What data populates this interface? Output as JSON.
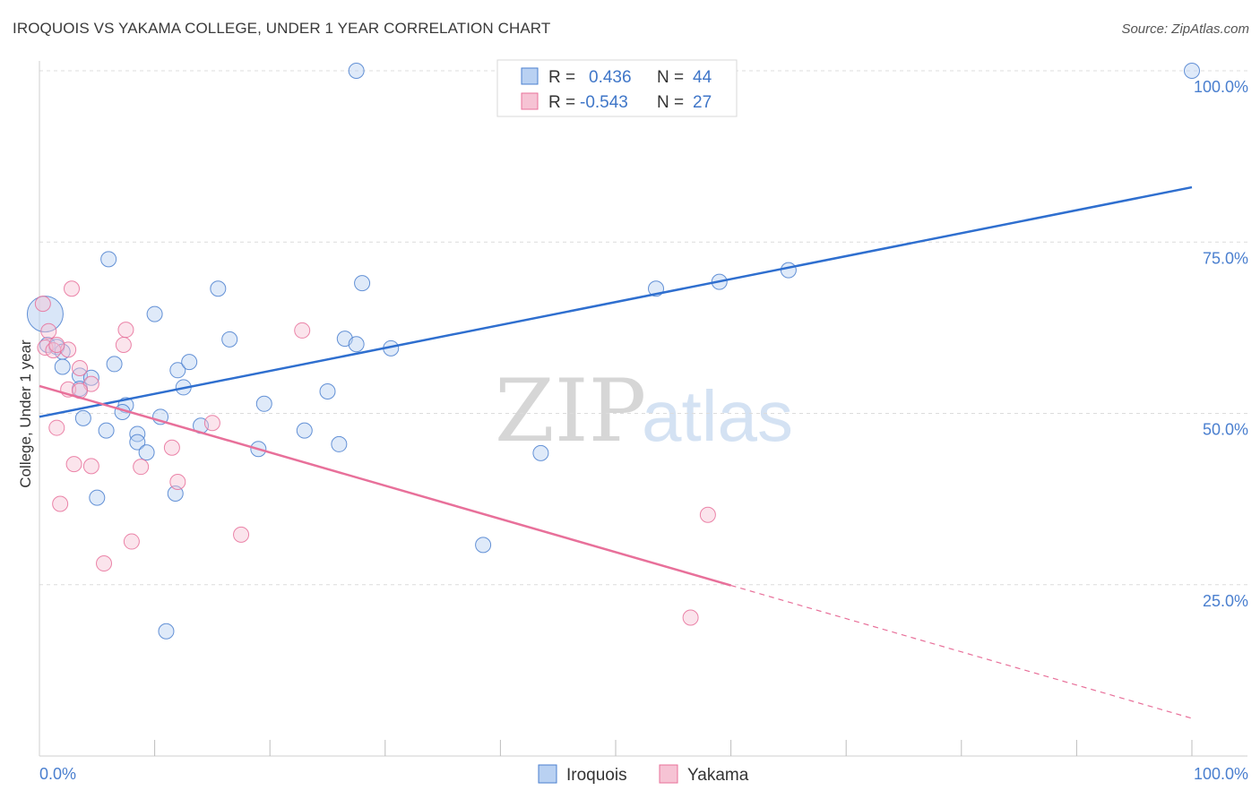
{
  "title": "IROQUOIS VS YAKAMA COLLEGE, UNDER 1 YEAR CORRELATION CHART",
  "source": "Source: ZipAtlas.com",
  "watermark": {
    "zip": "ZIP",
    "atlas": "atlas"
  },
  "colors": {
    "blue": "#4a7fcf",
    "blue_fill": "#b9d1f2",
    "pink": "#e8709a",
    "pink_fill": "#f6c3d4",
    "grid": "#dcdcdc"
  },
  "legend": {
    "rows": [
      {
        "r_label": "R =",
        "r_value": "0.436",
        "n_label": "N =",
        "n_value": "44"
      },
      {
        "r_label": "R =",
        "r_value": "-0.543",
        "n_label": "N =",
        "n_value": "27"
      }
    ]
  },
  "chart_data": {
    "type": "scatter",
    "title": "IROQUOIS VS YAKAMA COLLEGE, UNDER 1 YEAR CORRELATION CHART",
    "xlabel": "",
    "ylabel": "College, Under 1 year",
    "xlim": [
      0,
      100
    ],
    "ylim": [
      0,
      105
    ],
    "x_tick_labels": [
      "0.0%",
      "100.0%"
    ],
    "y_ticks": [
      {
        "value": 25,
        "label": "25.0%"
      },
      {
        "value": 50,
        "label": "50.0%"
      },
      {
        "value": 75,
        "label": "75.0%"
      },
      {
        "value": 100,
        "label": "100.0%"
      }
    ],
    "grid": true,
    "legend_position": "top-center",
    "series": [
      {
        "name": "Iroquois",
        "color": "#4a7fcf",
        "trend": {
          "x0": 0,
          "y0": 49.5,
          "x1": 100,
          "y1": 83
        },
        "points": [
          [
            27.5,
            100
          ],
          [
            100,
            100
          ],
          [
            6,
            72.5
          ],
          [
            10,
            64.5
          ],
          [
            15.5,
            68.2
          ],
          [
            16.5,
            60.8
          ],
          [
            28,
            69
          ],
          [
            26.5,
            60.9
          ],
          [
            27.5,
            60.1
          ],
          [
            30.5,
            59.5
          ],
          [
            0.5,
            64.5
          ],
          [
            0.7,
            60
          ],
          [
            1.5,
            59.7
          ],
          [
            2,
            59
          ],
          [
            2,
            56.8
          ],
          [
            3.5,
            55.5
          ],
          [
            4.5,
            55.2
          ],
          [
            6.5,
            57.2
          ],
          [
            12,
            56.3
          ],
          [
            13,
            57.5
          ],
          [
            12.5,
            53.8
          ],
          [
            3.5,
            53.6
          ],
          [
            7.5,
            51.2
          ],
          [
            7.2,
            50.2
          ],
          [
            10.5,
            49.5
          ],
          [
            3.8,
            49.3
          ],
          [
            19.5,
            51.4
          ],
          [
            25,
            53.2
          ],
          [
            5.8,
            47.5
          ],
          [
            8.5,
            47
          ],
          [
            8.5,
            45.8
          ],
          [
            14,
            48.2
          ],
          [
            23,
            47.5
          ],
          [
            26,
            45.5
          ],
          [
            9.3,
            44.3
          ],
          [
            19,
            44.8
          ],
          [
            43.5,
            44.2
          ],
          [
            59,
            69.2
          ],
          [
            65,
            70.9
          ],
          [
            5,
            37.7
          ],
          [
            11.8,
            38.3
          ],
          [
            38.5,
            30.8
          ],
          [
            11,
            18.2
          ],
          [
            53.5,
            68.2
          ]
        ]
      },
      {
        "name": "Yakama",
        "color": "#e8709a",
        "trend": {
          "x0": 0,
          "y0": 54,
          "x1": 100,
          "y1": 5.5,
          "solid_until_x": 60
        },
        "points": [
          [
            0.3,
            66
          ],
          [
            2.8,
            68.2
          ],
          [
            0.8,
            62
          ],
          [
            0.5,
            59.6
          ],
          [
            1.2,
            59.2
          ],
          [
            2.5,
            59.3
          ],
          [
            7.5,
            62.2
          ],
          [
            7.3,
            60
          ],
          [
            22.8,
            62.1
          ],
          [
            3.5,
            56.6
          ],
          [
            4.5,
            54.3
          ],
          [
            2.5,
            53.5
          ],
          [
            3.5,
            53.3
          ],
          [
            1.5,
            47.9
          ],
          [
            15,
            48.6
          ],
          [
            11.5,
            45
          ],
          [
            3,
            42.6
          ],
          [
            4.5,
            42.3
          ],
          [
            8.8,
            42.2
          ],
          [
            12,
            40
          ],
          [
            1.8,
            36.8
          ],
          [
            58,
            35.2
          ],
          [
            17.5,
            32.3
          ],
          [
            8,
            31.3
          ],
          [
            5.6,
            28.1
          ],
          [
            56.5,
            20.2
          ],
          [
            1.5,
            60
          ]
        ]
      }
    ]
  },
  "bottom_legend": [
    {
      "name": "Iroquois"
    },
    {
      "name": "Yakama"
    }
  ]
}
